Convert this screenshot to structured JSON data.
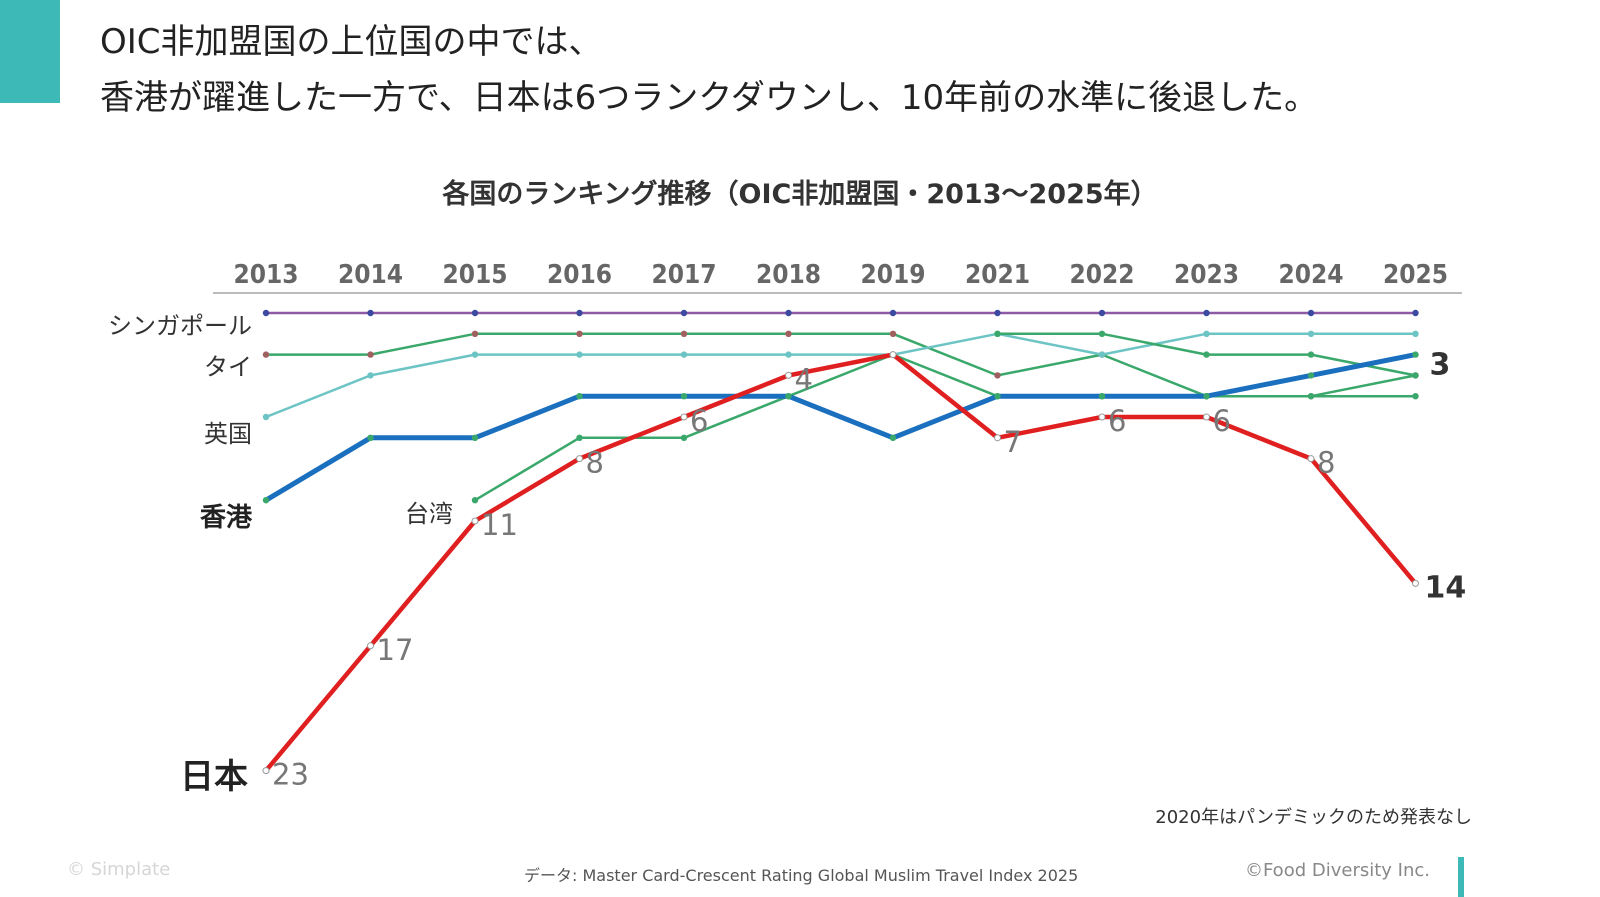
{
  "headline": {
    "line1": "OIC非加盟国の上位国の中では、",
    "line2": "香港が躍進した一方で、日本は6つランクダウンし、10年前の水準に後退した。"
  },
  "footer": {
    "source": "データ: Master Card-Crescent Rating Global Muslim Travel Index 2025",
    "note": "2020年はパンデミックのため発表なし",
    "watermark": "© Simplate",
    "copyright": "©Food Diversity Inc."
  },
  "colors": {
    "accent": "#3dbab7",
    "japan": "#e02020",
    "hongkong": "#1a6fbe",
    "singapore": "#8e5aa6",
    "thailand": "#3aa86b",
    "uk": "#6cc4c4",
    "taiwan": "#3aa86b"
  },
  "chart_data": {
    "type": "line",
    "title": "各国のランキング推移（OIC非加盟国・2013〜2025年）",
    "x": [
      "2013",
      "2014",
      "2015",
      "2016",
      "2017",
      "2018",
      "2019",
      "2021",
      "2022",
      "2023",
      "2024",
      "2025"
    ],
    "y_inverted": true,
    "ylim": [
      1,
      23
    ],
    "series": [
      {
        "key": "singapore",
        "name": "シンガポール",
        "values": [
          1,
          1,
          1,
          1,
          1,
          1,
          1,
          1,
          1,
          1,
          1,
          1
        ]
      },
      {
        "key": "thailand",
        "name": "タイ",
        "values": [
          3,
          3,
          2,
          2,
          2,
          2,
          2,
          4,
          3,
          5,
          5,
          4
        ]
      },
      {
        "key": "uk",
        "name": "英国",
        "values": [
          6,
          4,
          3,
          3,
          3,
          3,
          3,
          2,
          3,
          2,
          2,
          2
        ]
      },
      {
        "key": "extra",
        "name": "",
        "values": [
          null,
          null,
          null,
          null,
          null,
          null,
          null,
          2,
          2,
          3,
          3,
          4
        ]
      },
      {
        "key": "taiwan",
        "name": "台湾",
        "values": [
          null,
          null,
          10,
          7,
          7,
          5,
          3,
          5,
          5,
          5,
          5,
          5
        ]
      },
      {
        "key": "hongkong",
        "name": "香港",
        "values": [
          10,
          7,
          7,
          5,
          5,
          5,
          7,
          5,
          5,
          5,
          4,
          3
        ]
      },
      {
        "key": "japan",
        "name": "日本",
        "values": [
          23,
          17,
          11,
          8,
          6,
          4,
          3,
          7,
          6,
          6,
          8,
          14
        ]
      }
    ],
    "data_labels": {
      "japan": [
        "23",
        "17",
        "11",
        "8",
        "6",
        "4",
        "",
        "7",
        "6",
        "6",
        "8",
        "14"
      ],
      "hongkong_end": "3"
    }
  }
}
